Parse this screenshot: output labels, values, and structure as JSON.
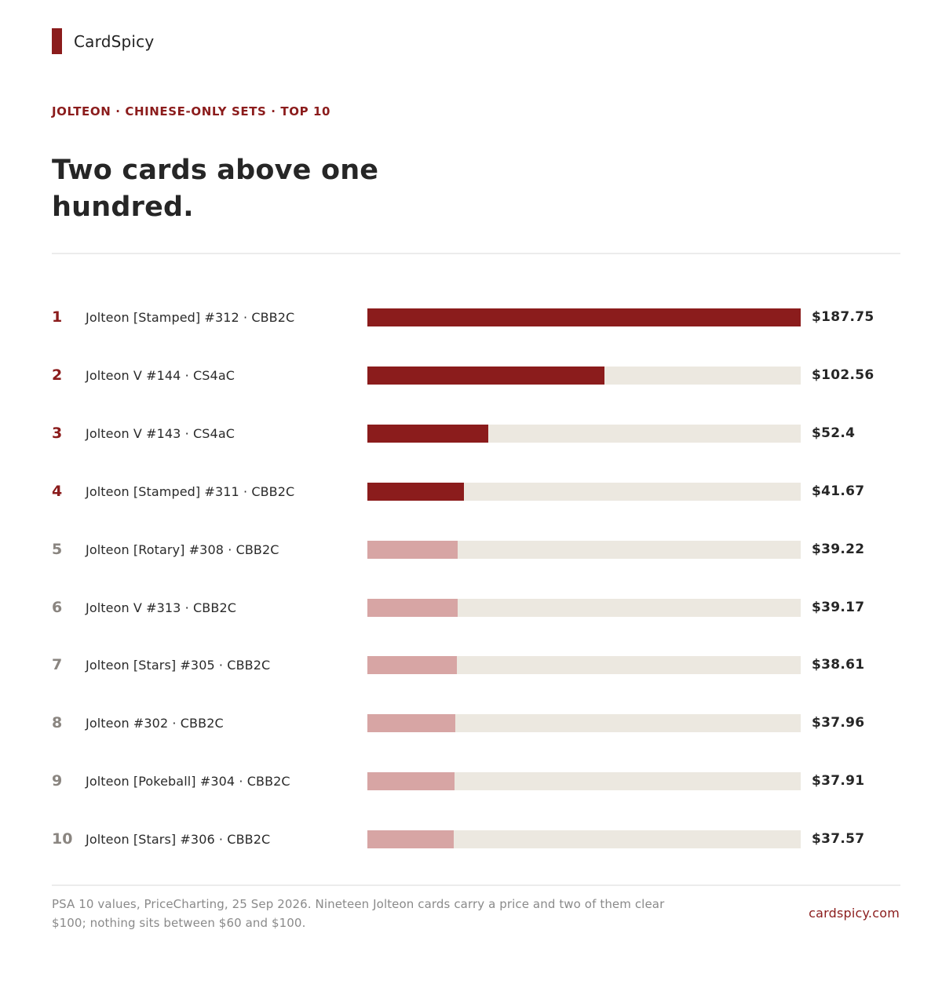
{
  "brand": {
    "name": "CardSpicy"
  },
  "eyebrow": "JOLTEON · CHINESE-ONLY SETS · TOP 10",
  "headline": "Two cards above one hundred.",
  "chart_data": {
    "type": "bar",
    "orientation": "horizontal",
    "categories": [
      "Jolteon [Stamped] #312 · CBB2C",
      "Jolteon V #144 · CS4aC",
      "Jolteon V #143 · CS4aC",
      "Jolteon [Stamped] #311 · CBB2C",
      "Jolteon [Rotary] #308 · CBB2C",
      "Jolteon V #313 · CBB2C",
      "Jolteon [Stars] #305 · CBB2C",
      "Jolteon #302 · CBB2C",
      "Jolteon [Pokeball] #304 · CBB2C",
      "Jolteon [Stars] #306 · CBB2C"
    ],
    "ranks": [
      "1",
      "2",
      "3",
      "4",
      "5",
      "6",
      "7",
      "8",
      "9",
      "10"
    ],
    "values": [
      187.75,
      102.56,
      52.4,
      41.67,
      39.22,
      39.17,
      38.61,
      37.96,
      37.91,
      37.57
    ],
    "value_labels": [
      "$187.75",
      "$102.56",
      "$52.4",
      "$41.67",
      "$39.22",
      "$39.17",
      "$38.61",
      "$37.96",
      "$37.91",
      "$37.57"
    ],
    "xlim": [
      0,
      187.75
    ],
    "highlight_count": 4,
    "grid": false,
    "colors": {
      "highlight_bar": "#8b1c1c",
      "muted_bar": "#d7a5a4",
      "track": "#ece8e0",
      "highlight_rank": "#8b1c1c",
      "muted_rank": "#8a8580"
    }
  },
  "footer": {
    "note": "PSA 10 values, PriceCharting, 25 Sep 2026. Nineteen Jolteon cards carry a price and two of them clear $100; nothing sits between $60 and $100.",
    "site": "cardspicy.com"
  }
}
